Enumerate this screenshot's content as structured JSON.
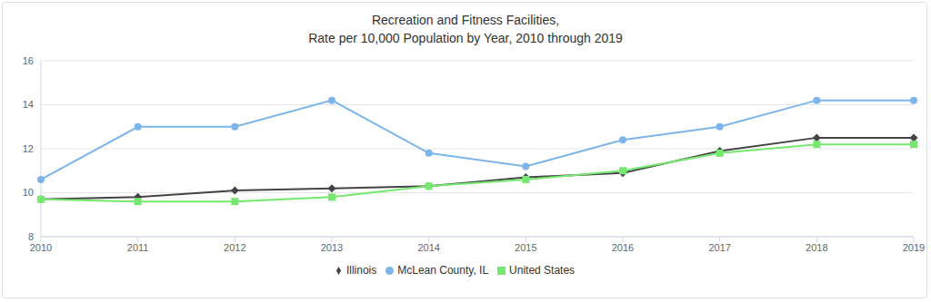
{
  "chart_data": {
    "type": "line",
    "title": "Recreation and Fitness Facilities,\nRate per 10,000 Population by Year, 2010 through 2019",
    "categories": [
      "2010",
      "2011",
      "2012",
      "2013",
      "2014",
      "2015",
      "2016",
      "2017",
      "2018",
      "2019"
    ],
    "series": [
      {
        "name": "McLean County, IL",
        "color": "#7cb5ec",
        "marker": "circle",
        "values": [
          10.6,
          13.0,
          13.0,
          14.2,
          11.8,
          11.2,
          12.4,
          13.0,
          14.2,
          14.2
        ]
      },
      {
        "name": "Illinois",
        "color": "#434348",
        "marker": "diamond",
        "values": [
          9.7,
          9.8,
          10.1,
          10.2,
          10.3,
          10.7,
          10.9,
          11.9,
          12.5,
          12.5
        ]
      },
      {
        "name": "United States",
        "color": "#77e86f",
        "marker": "square",
        "values": [
          9.7,
          9.6,
          9.6,
          9.8,
          10.3,
          10.6,
          11.0,
          11.8,
          12.2,
          12.2
        ]
      }
    ],
    "ylim": [
      8,
      16
    ],
    "yticks": [
      8,
      10,
      12,
      14,
      16
    ],
    "grid": true,
    "legend": "bottom"
  }
}
